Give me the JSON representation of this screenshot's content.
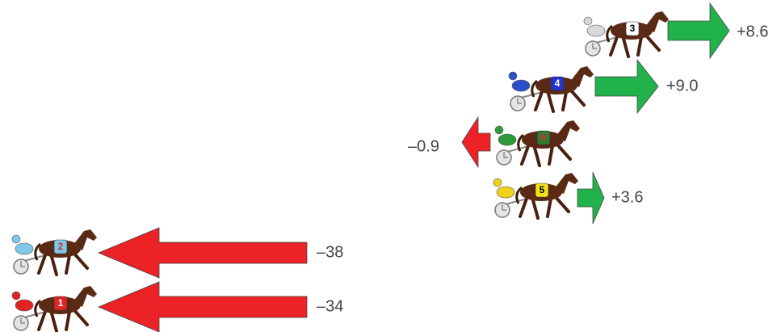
{
  "entries": [
    {
      "number": "3",
      "change": "+8.6"
    },
    {
      "number": "4",
      "change": "+9.0"
    },
    {
      "number": "6",
      "change": "–0.9"
    },
    {
      "number": "5",
      "change": "+3.6"
    },
    {
      "number": "2",
      "change": "–38"
    },
    {
      "number": "1",
      "change": "–34"
    }
  ]
}
